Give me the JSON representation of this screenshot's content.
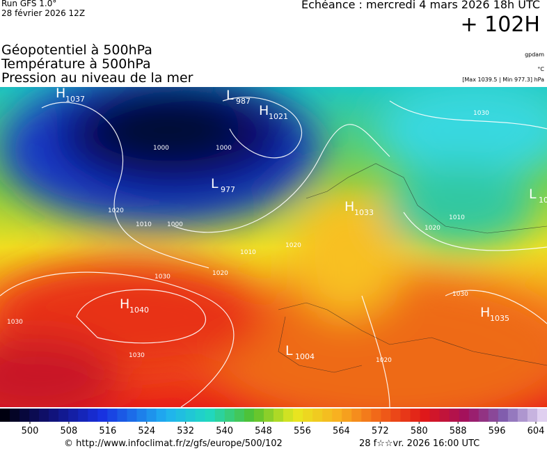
{
  "header": {
    "run": "Run GFS 1.0°",
    "date": "28 février 2026 12Z",
    "echeance": "Echéance : mercredi 4 mars 2026 18h UTC",
    "lead": "+ 102H"
  },
  "fields": [
    "Géopotentiel à 500hPa",
    "Température à 500hPa",
    "Pression au niveau de la mer"
  ],
  "units": [
    "gpdam",
    "°C",
    "[Max 1039.5 | Min 977.3] hPa"
  ],
  "centers": [
    {
      "type": "H",
      "value": "1037"
    },
    {
      "type": "L",
      "value": "987"
    },
    {
      "type": "H",
      "value": "1021"
    },
    {
      "type": "L",
      "value": "977"
    },
    {
      "type": "H",
      "value": "1033"
    },
    {
      "type": "L",
      "value": "10"
    },
    {
      "type": "H",
      "value": "1040"
    },
    {
      "type": "L",
      "value": "1004"
    },
    {
      "type": "H",
      "value": "1035"
    }
  ],
  "isobars": [
    "1000",
    "1000",
    "1000",
    "1010",
    "1020",
    "1010",
    "1020",
    "1030",
    "1030",
    "1030",
    "1020",
    "1010",
    "1020",
    "1030",
    "1030",
    "1020"
  ],
  "colorbar": {
    "ticks": [
      500,
      508,
      516,
      524,
      532,
      540,
      548,
      556,
      564,
      572,
      580,
      588,
      596,
      604
    ]
  },
  "footer": {
    "source": "© http://www.infoclimat.fr/z/gfs/europe/500/102",
    "time": "28 f☆☆vr. 2026 16:00 UTC"
  }
}
